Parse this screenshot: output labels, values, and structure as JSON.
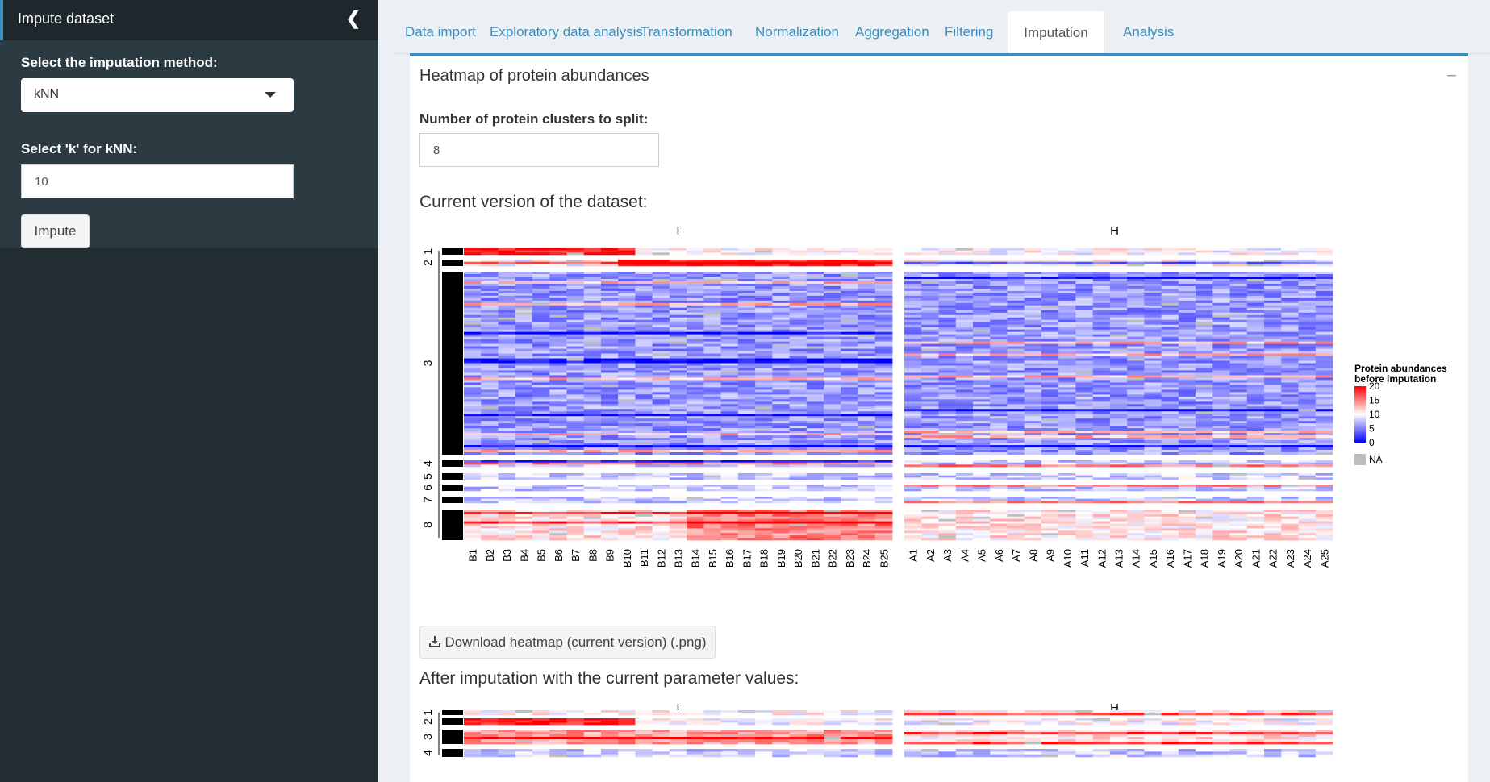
{
  "sidebar": {
    "header_title": "Impute dataset",
    "method_label": "Select the imputation method:",
    "method_value": "kNN",
    "k_label": "Select 'k' for kNN:",
    "k_value": "10",
    "impute_button": "Impute"
  },
  "tabs": [
    {
      "label": "Data import",
      "active": false
    },
    {
      "label": "Exploratory data analysis",
      "active": false
    },
    {
      "label": "Transformation",
      "active": false
    },
    {
      "label": "Normalization",
      "active": false
    },
    {
      "label": "Aggregation",
      "active": false
    },
    {
      "label": "Filtering",
      "active": false
    },
    {
      "label": "Imputation",
      "active": true
    },
    {
      "label": "Analysis",
      "active": false
    }
  ],
  "panel": {
    "title": "Heatmap of protein abundances",
    "collapse_symbol": "−",
    "clusters_label": "Number of protein clusters to split:",
    "clusters_value": "8",
    "current_title": "Current version of the dataset:",
    "download_label": "Download heatmap (current version) (.png)",
    "after_title": "After imputation with the current parameter values:"
  },
  "chart_data": [
    {
      "type": "heatmap",
      "title": "",
      "column_groups": [
        {
          "label": "I",
          "columns": [
            "B1",
            "B2",
            "B3",
            "B4",
            "B5",
            "B6",
            "B7",
            "B8",
            "B9",
            "B10",
            "B11",
            "B12",
            "B13",
            "B14",
            "B15",
            "B16",
            "B17",
            "B18",
            "B19",
            "B20",
            "B21",
            "B22",
            "B23",
            "B24",
            "B25"
          ]
        },
        {
          "label": "H",
          "columns": [
            "A1",
            "A2",
            "A3",
            "A4",
            "A5",
            "A6",
            "A7",
            "A8",
            "A9",
            "A10",
            "A11",
            "A12",
            "A13",
            "A14",
            "A15",
            "A16",
            "A17",
            "A18",
            "A19",
            "A20",
            "A21",
            "A22",
            "A23",
            "A24",
            "A25"
          ]
        }
      ],
      "row_clusters": [
        "1",
        "2",
        "3",
        "4",
        "5",
        "6",
        "7",
        "8"
      ],
      "legend": {
        "title_line1": "Protein abundances",
        "title_line2": "before imputation",
        "ticks": [
          "20",
          "15",
          "10",
          "5",
          "0"
        ],
        "range": [
          0,
          20
        ],
        "colors": [
          "#0000ff",
          "#ffffff",
          "#ff0000"
        ],
        "na_label": "NA",
        "na_color": "#bebebe",
        "placement": "right"
      }
    },
    {
      "type": "heatmap",
      "column_groups": [
        {
          "label": "I"
        },
        {
          "label": "H"
        }
      ],
      "row_clusters": [
        "1",
        "2",
        "3",
        "4"
      ]
    }
  ]
}
